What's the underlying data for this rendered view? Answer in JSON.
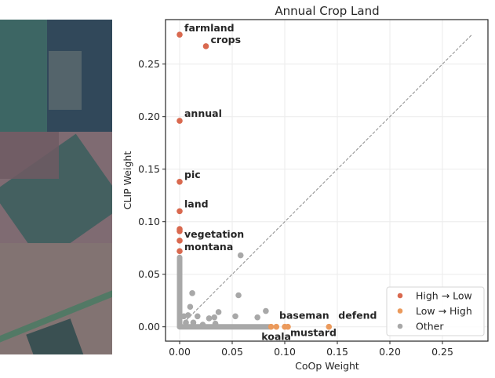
{
  "image_strip": {
    "tiles": [
      {
        "name": "tile-1",
        "base": "#3f5564",
        "patches": [
          "#3d6a64",
          "#2f4758",
          "#5a6a6e"
        ]
      },
      {
        "name": "tile-2",
        "base": "#7f6b72",
        "patches": [
          "#937c7f",
          "#3a5e5d",
          "#6e5a63"
        ]
      },
      {
        "name": "tile-3",
        "base": "#3d6458",
        "patches": [
          "#8e7677",
          "#2e4a4c",
          "#4a7a63"
        ]
      }
    ]
  },
  "chart_data": {
    "type": "scatter",
    "title": "Annual Crop Land",
    "xlabel": "CoOp Weight",
    "ylabel": "CLIP Weight",
    "xlim": [
      -0.013,
      0.293
    ],
    "ylim": [
      -0.013,
      0.292
    ],
    "xticks": [
      "0.00",
      "0.05",
      "0.10",
      "0.15",
      "0.20",
      "0.25"
    ],
    "xtick_values": [
      0,
      0.05,
      0.1,
      0.15,
      0.2,
      0.25
    ],
    "yticks": [
      "0.00",
      "0.05",
      "0.10",
      "0.15",
      "0.20",
      "0.25"
    ],
    "ytick_values": [
      0,
      0.05,
      0.1,
      0.15,
      0.2,
      0.25
    ],
    "grid": true,
    "diagonal": {
      "from": 0,
      "to": 0.2775,
      "style": "dashed"
    },
    "legend": {
      "position": "lower-right",
      "entries": [
        {
          "label": "High → Low",
          "color": "#d9694f"
        },
        {
          "label": "Low → High",
          "color": "#eb9a5c"
        },
        {
          "label": "Other",
          "color": "#a8a8a8"
        }
      ]
    },
    "series": [
      {
        "name": "High → Low",
        "color": "#d9694f",
        "points": [
          {
            "x": 0.0,
            "y": 0.278,
            "label": "farmland"
          },
          {
            "x": 0.025,
            "y": 0.267,
            "label": "crops"
          },
          {
            "x": 0.0,
            "y": 0.196,
            "label": "annual"
          },
          {
            "x": 0.0,
            "y": 0.138,
            "label": "pic"
          },
          {
            "x": 0.0,
            "y": 0.11,
            "label": "land"
          },
          {
            "x": 0.0,
            "y": 0.093,
            "label": ""
          },
          {
            "x": 0.0,
            "y": 0.091,
            "label": ""
          },
          {
            "x": 0.0,
            "y": 0.082,
            "label": "vegetation"
          },
          {
            "x": 0.0,
            "y": 0.072,
            "label": "montana"
          }
        ]
      },
      {
        "name": "Low → High",
        "color": "#eb9a5c",
        "points": [
          {
            "x": 0.087,
            "y": 0.0,
            "label": ""
          },
          {
            "x": 0.092,
            "y": 0.0,
            "label": "koala"
          },
          {
            "x": 0.1,
            "y": 0.0,
            "label": "baseman"
          },
          {
            "x": 0.103,
            "y": 0.0,
            "label": "mustard"
          },
          {
            "x": 0.142,
            "y": 0.0,
            "label": "defend"
          }
        ]
      },
      {
        "name": "Other",
        "color": "#a8a8a8",
        "points": [
          {
            "x": 0.058,
            "y": 0.068
          },
          {
            "x": 0.012,
            "y": 0.032
          },
          {
            "x": 0.056,
            "y": 0.03
          },
          {
            "x": 0.01,
            "y": 0.019
          },
          {
            "x": 0.037,
            "y": 0.014
          },
          {
            "x": 0.017,
            "y": 0.01
          },
          {
            "x": 0.028,
            "y": 0.008
          },
          {
            "x": 0.033,
            "y": 0.009
          },
          {
            "x": 0.053,
            "y": 0.01
          },
          {
            "x": 0.082,
            "y": 0.015
          },
          {
            "x": 0.074,
            "y": 0.009
          },
          {
            "x": 0.004,
            "y": 0.01
          },
          {
            "x": 0.008,
            "y": 0.011
          },
          {
            "x": 0.006,
            "y": 0.004
          },
          {
            "x": 0.013,
            "y": 0.004
          },
          {
            "x": 0.034,
            "y": 0.003
          },
          {
            "x": 0.022,
            "y": 0.002
          }
        ],
        "bands": [
          {
            "axis": "y",
            "from": 0,
            "to": 0.066
          },
          {
            "axis": "x",
            "from": 0,
            "to": 0.086
          }
        ]
      }
    ]
  }
}
